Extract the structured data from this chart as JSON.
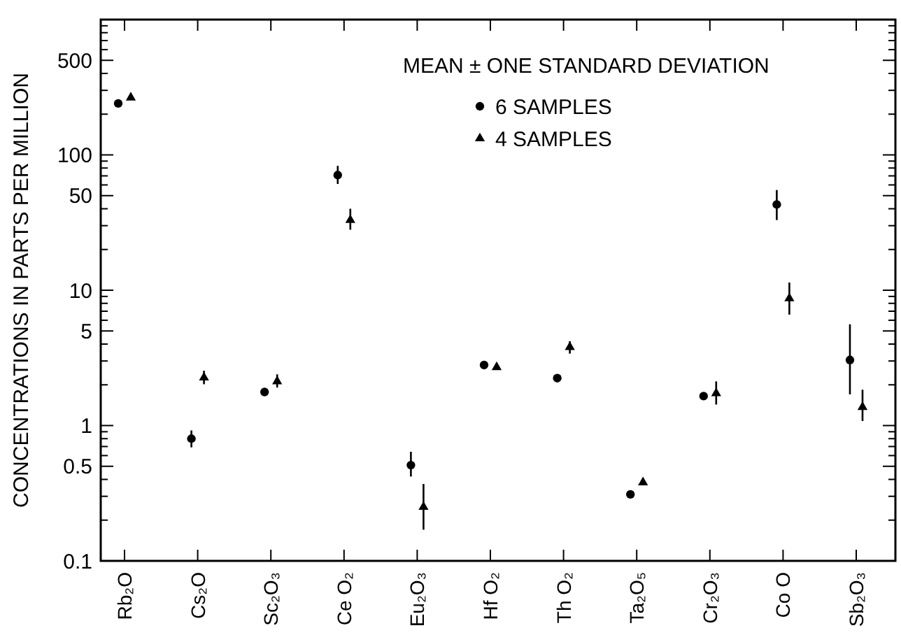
{
  "chart_data": {
    "type": "scatter",
    "ylabel": "CONCENTRATIONS IN PARTS PER MILLION",
    "legend_title": "MEAN ± ONE STANDARD DEVIATION",
    "legend": "top right",
    "grid": false,
    "log": "y",
    "categories": [
      "Rb₂O",
      "Cs₂O",
      "Sc₂O₃",
      "Ce O₂",
      "Eu₂O₃",
      "Hf O₂",
      "Th O₂",
      "Ta₂O₅",
      "Cr₂O₃",
      "Co O",
      "Sb₂O₃"
    ],
    "ylim": [
      0.1,
      1000
    ],
    "yticks": [
      0.1,
      {
        "value": 0.2,
        "label": null
      },
      {
        "value": 0.3,
        "label": null
      },
      {
        "value": 0.4,
        "label": null
      },
      0.5,
      {
        "value": 0.6,
        "label": null
      },
      {
        "value": 0.7,
        "label": null
      },
      {
        "value": 0.8,
        "label": null
      },
      {
        "value": 0.9,
        "label": null
      },
      1,
      {
        "value": 2,
        "label": null
      },
      {
        "value": 3,
        "label": null
      },
      {
        "value": 4,
        "label": null
      },
      5,
      {
        "value": 6,
        "label": null
      },
      {
        "value": 7,
        "label": null
      },
      {
        "value": 8,
        "label": null
      },
      {
        "value": 9,
        "label": null
      },
      10,
      {
        "value": 20,
        "label": null
      },
      {
        "value": 30,
        "label": null
      },
      {
        "value": 40,
        "label": null
      },
      50,
      {
        "value": 60,
        "label": null
      },
      {
        "value": 70,
        "label": null
      },
      {
        "value": 80,
        "label": null
      },
      {
        "value": 90,
        "label": null
      },
      100,
      {
        "value": 200,
        "label": null
      },
      {
        "value": 300,
        "label": null
      },
      {
        "value": 400,
        "label": null
      },
      500,
      {
        "value": 600,
        "label": null
      },
      {
        "value": 700,
        "label": null
      },
      {
        "value": 800,
        "label": null
      },
      {
        "value": 900,
        "label": null
      },
      {
        "value": 1000,
        "label": null
      }
    ],
    "series": [
      {
        "name": "6 SAMPLES",
        "color": "#000000",
        "marker": "circle",
        "values": [
          240,
          0.8,
          1.77,
          71,
          0.51,
          2.8,
          2.24,
          0.31,
          1.65,
          43,
          3.05
        ],
        "errors": [
          null,
          [
            0.69,
            0.92
          ],
          null,
          [
            61,
            83
          ],
          [
            0.42,
            0.64
          ],
          null,
          null,
          null,
          null,
          [
            33,
            55
          ],
          [
            1.7,
            5.6
          ]
        ]
      },
      {
        "name": "4 SAMPLES",
        "color": "#000000",
        "marker": "triangle",
        "values": [
          265,
          2.26,
          2.12,
          33,
          0.25,
          2.7,
          3.8,
          0.38,
          1.73,
          8.7,
          1.37
        ],
        "errors": [
          null,
          [
            2.02,
            2.54
          ],
          [
            1.91,
            2.39
          ],
          [
            28,
            40
          ],
          [
            0.17,
            0.37
          ],
          null,
          [
            3.4,
            4.2
          ],
          null,
          [
            1.43,
            2.12
          ],
          [
            6.6,
            11.4
          ],
          [
            1.08,
            1.84
          ]
        ]
      }
    ]
  }
}
